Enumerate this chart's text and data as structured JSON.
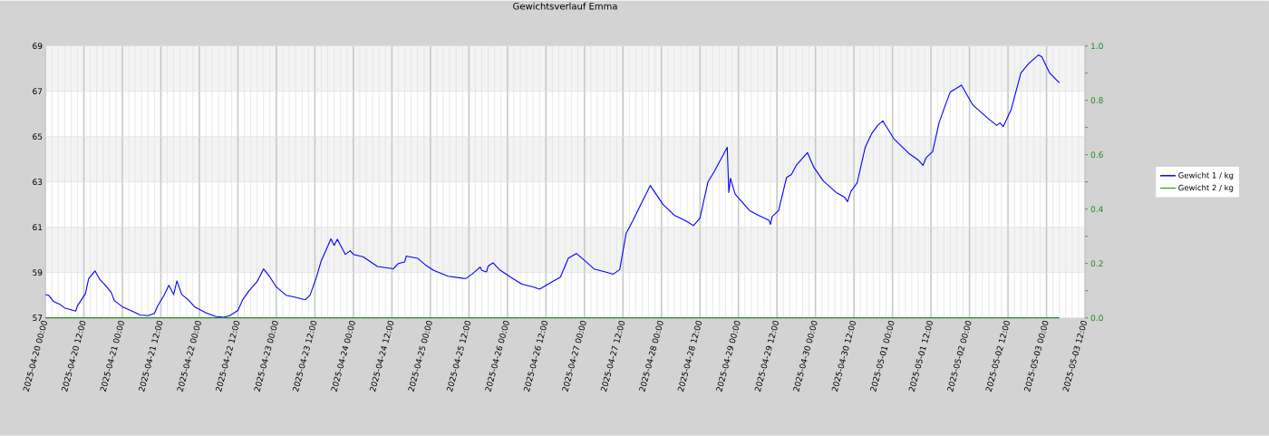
{
  "chart_data": {
    "type": "line",
    "title": "Gewichtsverlauf Emma",
    "xlim": [
      "2025-04-20T00:00",
      "2025-05-03T12:00"
    ],
    "xticks": [
      {
        "value": "2025-04-20T00:00",
        "label": "2025-04-20 00:00"
      },
      {
        "value": "2025-04-20T12:00",
        "label": "2025-04-20 12:00"
      },
      {
        "value": "2025-04-21T00:00",
        "label": "2025-04-21 00:00"
      },
      {
        "value": "2025-04-21T12:00",
        "label": "2025-04-21 12:00"
      },
      {
        "value": "2025-04-22T00:00",
        "label": "2025-04-22 00:00"
      },
      {
        "value": "2025-04-22T12:00",
        "label": "2025-04-22 12:00"
      },
      {
        "value": "2025-04-23T00:00",
        "label": "2025-04-23 00:00"
      },
      {
        "value": "2025-04-23T12:00",
        "label": "2025-04-23 12:00"
      },
      {
        "value": "2025-04-24T00:00",
        "label": "2025-04-24 00:00"
      },
      {
        "value": "2025-04-24T12:00",
        "label": "2025-04-24 12:00"
      },
      {
        "value": "2025-04-25T00:00",
        "label": "2025-04-25 00:00"
      },
      {
        "value": "2025-04-25T12:00",
        "label": "2025-04-25 12:00"
      },
      {
        "value": "2025-04-26T00:00",
        "label": "2025-04-26 00:00"
      },
      {
        "value": "2025-04-26T12:00",
        "label": "2025-04-26 12:00"
      },
      {
        "value": "2025-04-27T00:00",
        "label": "2025-04-27 00:00"
      },
      {
        "value": "2025-04-27T12:00",
        "label": "2025-04-27 12:00"
      },
      {
        "value": "2025-04-28T00:00",
        "label": "2025-04-28 00:00"
      },
      {
        "value": "2025-04-28T12:00",
        "label": "2025-04-28 12:00"
      },
      {
        "value": "2025-04-29T00:00",
        "label": "2025-04-29 00:00"
      },
      {
        "value": "2025-04-29T12:00",
        "label": "2025-04-29 12:00"
      },
      {
        "value": "2025-04-30T00:00",
        "label": "2025-04-30 00:00"
      },
      {
        "value": "2025-04-30T12:00",
        "label": "2025-04-30 12:00"
      },
      {
        "value": "2025-05-01T00:00",
        "label": "2025-05-01 00:00"
      },
      {
        "value": "2025-05-01T12:00",
        "label": "2025-05-01 12:00"
      },
      {
        "value": "2025-05-02T00:00",
        "label": "2025-05-02 00:00"
      },
      {
        "value": "2025-05-02T12:00",
        "label": "2025-05-02 12:00"
      },
      {
        "value": "2025-05-03T00:00",
        "label": "2025-05-03 00:00"
      },
      {
        "value": "2025-05-03T12:00",
        "label": "2025-05-03 12:00"
      }
    ],
    "ylim": [
      57,
      69
    ],
    "yticks": [
      57,
      59,
      61,
      63,
      65,
      67,
      69
    ],
    "y2lim": [
      0,
      1
    ],
    "y2ticks": [
      {
        "value": 0,
        "label": "0.0"
      },
      {
        "value": 0.1,
        "label": null
      },
      {
        "value": 0.2,
        "label": "0.2"
      },
      {
        "value": 0.3,
        "label": null
      },
      {
        "value": 0.4,
        "label": "0.4"
      },
      {
        "value": 0.5,
        "label": null
      },
      {
        "value": 0.6,
        "label": "0.6"
      },
      {
        "value": 0.7,
        "label": null
      },
      {
        "value": 0.8,
        "label": "0.8"
      },
      {
        "value": 0.9,
        "label": null
      },
      {
        "value": 1,
        "label": "1.0"
      }
    ],
    "grid": true,
    "legend": "right",
    "series": [
      {
        "name": "Gewicht 1 / kg",
        "color": "#0000ff",
        "x": [
          "2025-04-20T00:00",
          "2025-04-20T01:00",
          "2025-04-20T02:30",
          "2025-04-20T04:30",
          "2025-04-20T06:00",
          "2025-04-20T08:00",
          "2025-04-20T09:30",
          "2025-04-20T10:00",
          "2025-04-20T12:30",
          "2025-04-20T13:30",
          "2025-04-20T15:30",
          "2025-04-20T17:00",
          "2025-04-20T18:30",
          "2025-04-20T20:30",
          "2025-04-20T21:30",
          "2025-04-21T00:00",
          "2025-04-21T03:30",
          "2025-04-21T05:30",
          "2025-04-21T08:00",
          "2025-04-21T10:00",
          "2025-04-21T11:00",
          "2025-04-21T13:00",
          "2025-04-21T14:30",
          "2025-04-21T16:00",
          "2025-04-21T17:00",
          "2025-04-21T18:30",
          "2025-04-21T20:30",
          "2025-04-21T22:30",
          "2025-04-22T02:00",
          "2025-04-22T05:00",
          "2025-04-22T07:30",
          "2025-04-22T09:30",
          "2025-04-22T12:00",
          "2025-04-22T13:30",
          "2025-04-22T15:30",
          "2025-04-22T18:00",
          "2025-04-22T20:00",
          "2025-04-22T22:00",
          "2025-04-23T00:00",
          "2025-04-23T03:00",
          "2025-04-23T06:00",
          "2025-04-23T09:00",
          "2025-04-23T10:30",
          "2025-04-23T12:30",
          "2025-04-23T14:00",
          "2025-04-23T15:30",
          "2025-04-23T17:00",
          "2025-04-23T18:00",
          "2025-04-23T19:00",
          "2025-04-23T21:30",
          "2025-04-23T23:00",
          "2025-04-24T00:00",
          "2025-04-24T03:00",
          "2025-04-24T07:30",
          "2025-04-24T12:30",
          "2025-04-24T14:00",
          "2025-04-24T16:00",
          "2025-04-24T16:30",
          "2025-04-24T20:00",
          "2025-04-24T22:30",
          "2025-04-25T01:00",
          "2025-04-25T05:30",
          "2025-04-25T11:00",
          "2025-04-25T13:00",
          "2025-04-25T15:30",
          "2025-04-25T16:00",
          "2025-04-25T17:30",
          "2025-04-25T18:00",
          "2025-04-25T19:30",
          "2025-04-25T21:30",
          "2025-04-26T01:00",
          "2025-04-26T04:30",
          "2025-04-26T08:00",
          "2025-04-26T10:00",
          "2025-04-26T13:30",
          "2025-04-26T16:30",
          "2025-04-26T19:00",
          "2025-04-26T21:30",
          "2025-04-26T23:30",
          "2025-04-27T03:00",
          "2025-04-27T06:30",
          "2025-04-27T09:00",
          "2025-04-27T11:00",
          "2025-04-27T13:00",
          "2025-04-27T15:00",
          "2025-04-27T18:00",
          "2025-04-27T20:30",
          "2025-04-28T00:30",
          "2025-04-28T04:00",
          "2025-04-28T07:30",
          "2025-04-28T10:00",
          "2025-04-28T12:00",
          "2025-04-28T14:30",
          "2025-04-28T16:30",
          "2025-04-28T20:30",
          "2025-04-28T21:00",
          "2025-04-28T21:30",
          "2025-04-28T23:00",
          "2025-04-29T01:00",
          "2025-04-29T03:30",
          "2025-04-29T06:30",
          "2025-04-29T09:30",
          "2025-04-29T10:00",
          "2025-04-29T10:30",
          "2025-04-29T12:30",
          "2025-04-29T15:00",
          "2025-04-29T16:30",
          "2025-04-29T18:00",
          "2025-04-29T21:30",
          "2025-04-29T23:30",
          "2025-04-30T02:30",
          "2025-04-30T06:30",
          "2025-04-30T09:00",
          "2025-04-30T10:00",
          "2025-04-30T11:00",
          "2025-04-30T13:00",
          "2025-04-30T15:30",
          "2025-04-30T17:30",
          "2025-04-30T19:30",
          "2025-04-30T21:00",
          "2025-05-01T00:30",
          "2025-05-01T05:00",
          "2025-05-01T08:00",
          "2025-05-01T09:30",
          "2025-05-01T10:30",
          "2025-05-01T12:30",
          "2025-05-01T14:30",
          "2025-05-01T16:00",
          "2025-05-01T18:00",
          "2025-05-01T21:30",
          "2025-05-02T01:00",
          "2025-05-02T05:30",
          "2025-05-02T08:30",
          "2025-05-02T09:30",
          "2025-05-02T10:30",
          "2025-05-02T13:00",
          "2025-05-02T16:00",
          "2025-05-02T18:30",
          "2025-05-02T21:30",
          "2025-05-02T22:30",
          "2025-05-03T01:00",
          "2025-05-03T04:00"
        ],
        "values": [
          58.03,
          58.0,
          57.73,
          57.6,
          57.44,
          57.36,
          57.3,
          57.53,
          58.07,
          58.73,
          59.07,
          58.69,
          58.47,
          58.13,
          57.76,
          57.49,
          57.27,
          57.13,
          57.1,
          57.2,
          57.53,
          58.0,
          58.44,
          58.03,
          58.63,
          58.03,
          57.8,
          57.49,
          57.23,
          57.07,
          57.03,
          57.1,
          57.33,
          57.8,
          58.2,
          58.6,
          59.16,
          58.8,
          58.36,
          58.0,
          57.91,
          57.8,
          58.0,
          58.8,
          59.53,
          60.0,
          60.49,
          60.2,
          60.47,
          59.8,
          59.96,
          59.8,
          59.7,
          59.27,
          59.17,
          59.4,
          59.47,
          59.73,
          59.63,
          59.33,
          59.1,
          58.84,
          58.73,
          58.93,
          59.24,
          59.1,
          59.03,
          59.29,
          59.43,
          59.13,
          58.8,
          58.49,
          58.37,
          58.27,
          58.56,
          58.8,
          59.64,
          59.84,
          59.6,
          59.16,
          59.03,
          58.93,
          59.13,
          60.73,
          61.27,
          62.13,
          62.84,
          62.0,
          61.53,
          61.29,
          61.07,
          61.4,
          63.0,
          63.47,
          64.53,
          62.53,
          63.16,
          62.45,
          62.13,
          61.73,
          61.51,
          61.31,
          61.13,
          61.47,
          61.73,
          63.2,
          63.33,
          63.73,
          64.29,
          63.64,
          63.03,
          62.53,
          62.33,
          62.13,
          62.57,
          62.96,
          64.53,
          65.13,
          65.51,
          65.69,
          64.89,
          64.27,
          63.97,
          63.73,
          64.07,
          64.33,
          65.6,
          66.2,
          66.97,
          67.27,
          66.4,
          65.83,
          65.49,
          65.6,
          65.44,
          66.2,
          67.8,
          68.23,
          68.6,
          68.53,
          67.8,
          67.37
        ]
      },
      {
        "name": "Gewicht 2 / kg",
        "color": "#228b22",
        "axis": "y2",
        "x": [
          "2025-04-20T00:00",
          "2025-05-03T04:00"
        ],
        "values": [
          0,
          0
        ]
      }
    ]
  }
}
